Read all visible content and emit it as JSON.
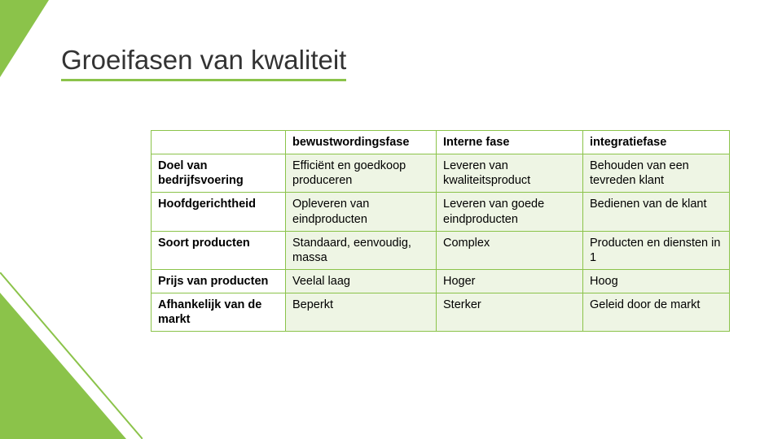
{
  "title": "Groeifasen van kwaliteit",
  "accent_color": "#8bc34a",
  "cell_bg": "#eef5e4",
  "table": {
    "columns": [
      "",
      "bewustwordingsfase",
      "Interne fase",
      "integratiefase"
    ],
    "rows": [
      {
        "label": "Doel van bedrijfsvoering",
        "cells": [
          "Efficiënt en goedkoop produceren",
          "Leveren van kwaliteitsproduct",
          "Behouden van een tevreden klant"
        ]
      },
      {
        "label": "Hoofdgerichtheid",
        "cells": [
          "Opleveren van eindproducten",
          "Leveren van goede eindproducten",
          "Bedienen van de klant"
        ]
      },
      {
        "label": "Soort producten",
        "cells": [
          "Standaard, eenvoudig, massa",
          "Complex",
          "Producten en diensten in 1"
        ]
      },
      {
        "label": "Prijs van producten",
        "cells": [
          "Veelal laag",
          "Hoger",
          "Hoog"
        ]
      },
      {
        "label": "Afhankelijk van de markt",
        "cells": [
          "Beperkt",
          "Sterker",
          "Geleid door de markt"
        ]
      }
    ]
  }
}
